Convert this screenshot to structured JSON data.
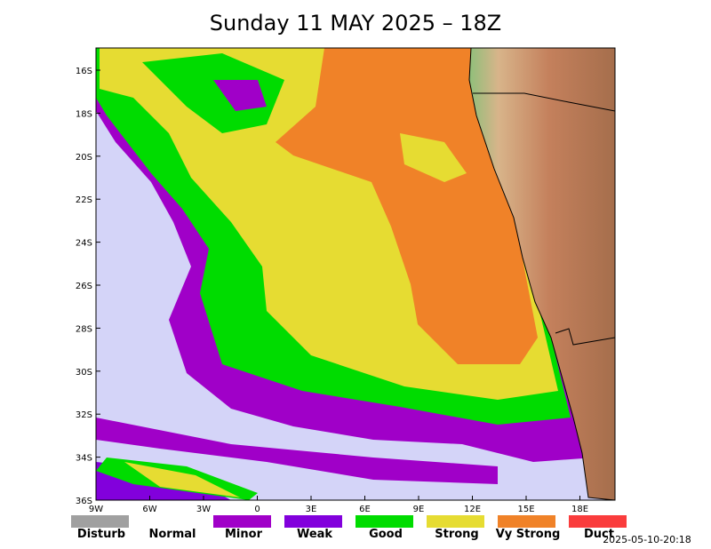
{
  "title": "Sunday 11 MAY 2025 – 18Z",
  "map": {
    "lat_labels": [
      "16S",
      "18S",
      "20S",
      "22S",
      "24S",
      "26S",
      "28S",
      "30S",
      "32S",
      "34S",
      "36S"
    ],
    "lon_labels": [
      "9W",
      "6W",
      "3W",
      "0",
      "3E",
      "6E",
      "9E",
      "12E",
      "15E",
      "18E"
    ]
  },
  "legend": [
    {
      "label": "Disturb",
      "color": "#a0a0a0"
    },
    {
      "label": "Normal"
    },
    {
      "label": "Minor",
      "color": "#a000c8"
    },
    {
      "label": "Weak",
      "color": "#8200dc"
    },
    {
      "label": "Good",
      "color": "#00dc00"
    },
    {
      "label": "Strong",
      "color": "#e6dc32"
    },
    {
      "label": "Vy Strong",
      "color": "#f08228"
    },
    {
      "label": "Duct",
      "color": "#fa3c3c"
    }
  ],
  "timestamp": "2025-05-10-20:18"
}
